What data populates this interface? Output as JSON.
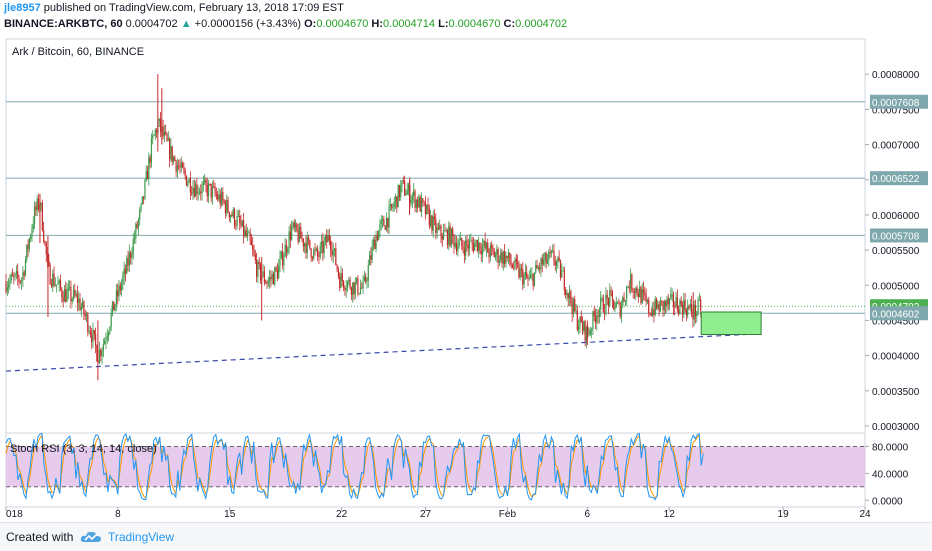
{
  "header": {
    "user": "jle8957",
    "published_text": "published on TradingView.com, February 13, 2018 17:09 EST",
    "symbol_text": "BINANCE:ARKBTC, 60",
    "last": "0.0004702",
    "change_arrow": "▲",
    "change": "+0.0000156 (+3.43%)",
    "o_label": "O:",
    "o_value": "0.0004670",
    "h_label": "H:",
    "h_value": "0.0004714",
    "l_label": "L:",
    "l_value": "0.0004670",
    "c_label": "C:",
    "c_value": "0.0004702"
  },
  "footer": {
    "created_with": "Created with",
    "brand": "TradingView"
  },
  "colors": {
    "up": "#26a69a",
    "down": "#ef5350",
    "candle_up": "#3c9a4a",
    "candle_down": "#c62828",
    "hline": "#7fa8ad",
    "trend": "#3949ab",
    "rsi_band": "#e1bee7",
    "rsi_k": "#2196f3",
    "rsi_d": "#ff9800",
    "box_fill": "#90ee90"
  },
  "chart_data": {
    "type": "candlestick",
    "title": "Ark / Bitcoin, 60, BINANCE",
    "price_axis": {
      "range": [
        0.00029,
        0.00085
      ],
      "ticks": [
        "0.0008000",
        "0.0007500",
        "0.0007000",
        "0.0006500",
        "0.0006000",
        "0.0005500",
        "0.0005000",
        "0.0004500",
        "0.0004000",
        "0.0003500",
        "0.0003000"
      ]
    },
    "time_axis": {
      "range_days": [
        0,
        43
      ],
      "ticks": [
        {
          "label": "018",
          "day": 0
        },
        {
          "label": "8",
          "day": 5.6
        },
        {
          "label": "15",
          "day": 11.2
        },
        {
          "label": "22",
          "day": 16.8
        },
        {
          "label": "27",
          "day": 21.0
        },
        {
          "label": "Feb",
          "day": 25.1
        },
        {
          "label": "6",
          "day": 29.1
        },
        {
          "label": "12",
          "day": 33.2
        },
        {
          "label": "19",
          "day": 38.9
        },
        {
          "label": "24",
          "day": 43.0
        }
      ]
    },
    "horizontal_levels": [
      {
        "label": "0.0007608",
        "value": 0.0007608,
        "style": "solid"
      },
      {
        "label": "0.0006522",
        "value": 0.0006522,
        "style": "solid"
      },
      {
        "label": "0.0005708",
        "value": 0.0005708,
        "style": "solid"
      },
      {
        "label": "0.0004702",
        "value": 0.0004702,
        "style": "dotted",
        "kind": "last-price"
      },
      {
        "label": "0.0004602",
        "value": 0.0004602,
        "style": "solid"
      }
    ],
    "trendline": {
      "from": {
        "day": 0,
        "price": 0.000378
      },
      "to": {
        "day": 37.0,
        "price": 0.00043
      }
    },
    "target_box": {
      "from_day": 34.8,
      "to_day": 37.8,
      "price_high": 0.000462,
      "price_low": 0.00043
    },
    "price_path": [
      [
        0,
        0.000505
      ],
      [
        0.8,
        0.00051
      ],
      [
        1.4,
        0.0006
      ],
      [
        1.7,
        0.00062
      ],
      [
        2.1,
        0.00052
      ],
      [
        2.8,
        0.00049
      ],
      [
        3.6,
        0.00048
      ],
      [
        4.2,
        0.00044
      ],
      [
        4.6,
        0.0004
      ],
      [
        4.9,
        0.00042
      ],
      [
        5.4,
        0.00047
      ],
      [
        6.0,
        0.00052
      ],
      [
        6.8,
        0.00061
      ],
      [
        7.3,
        0.0007
      ],
      [
        7.6,
        0.00073
      ],
      [
        8.2,
        0.00069
      ],
      [
        8.8,
        0.00066
      ],
      [
        9.4,
        0.00064
      ],
      [
        10.2,
        0.000635
      ],
      [
        10.8,
        0.00062
      ],
      [
        11.6,
        0.00059
      ],
      [
        12.2,
        0.00056
      ],
      [
        12.6,
        0.00052
      ],
      [
        13.1,
        0.000505
      ],
      [
        13.6,
        0.00052
      ],
      [
        14.3,
        0.00058
      ],
      [
        15.0,
        0.00056
      ],
      [
        15.6,
        0.00054
      ],
      [
        16.2,
        0.00057
      ],
      [
        16.7,
        0.00051
      ],
      [
        17.3,
        0.0005
      ],
      [
        17.9,
        0.000495
      ],
      [
        18.5,
        0.00057
      ],
      [
        19.2,
        0.0006
      ],
      [
        19.8,
        0.00064
      ],
      [
        20.4,
        0.000625
      ],
      [
        21.0,
        0.000605
      ],
      [
        21.6,
        0.000575
      ],
      [
        22.2,
        0.00057
      ],
      [
        22.8,
        0.000555
      ],
      [
        23.6,
        0.00056
      ],
      [
        24.3,
        0.000545
      ],
      [
        25.0,
        0.00054
      ],
      [
        25.6,
        0.00052
      ],
      [
        26.2,
        0.000505
      ],
      [
        26.8,
        0.00053
      ],
      [
        27.4,
        0.00054
      ],
      [
        27.9,
        0.00051
      ],
      [
        28.6,
        0.00045
      ],
      [
        29.1,
        0.00043
      ],
      [
        29.6,
        0.000465
      ],
      [
        30.2,
        0.00048
      ],
      [
        30.7,
        0.000465
      ],
      [
        31.2,
        0.000505
      ],
      [
        31.7,
        0.00049
      ],
      [
        32.2,
        0.000465
      ],
      [
        32.8,
        0.00047
      ],
      [
        33.4,
        0.000475
      ],
      [
        34.0,
        0.00047
      ],
      [
        34.4,
        0.00046
      ],
      [
        34.8,
        0.00047
      ]
    ],
    "spikes": [
      {
        "day": 1.7,
        "high": 0.00063,
        "low": 0.00056
      },
      {
        "day": 2.1,
        "high": 0.00057,
        "low": 0.000455
      },
      {
        "day": 4.6,
        "high": 0.00045,
        "low": 0.000365
      },
      {
        "day": 7.6,
        "high": 0.0008,
        "low": 0.00069
      },
      {
        "day": 7.8,
        "high": 0.00078,
        "low": 0.0007
      },
      {
        "day": 12.8,
        "high": 0.00054,
        "low": 0.00045
      },
      {
        "day": 20.2,
        "high": 0.00065,
        "low": 0.0006
      },
      {
        "day": 29.1,
        "high": 0.00045,
        "low": 0.000415
      },
      {
        "day": 34.4,
        "high": 0.00049,
        "low": 0.000455
      }
    ],
    "indicator": {
      "name": "Stoch RSI (3, 3, 14, 14, close)",
      "range": [
        -10,
        100
      ],
      "ticks": [
        "80.0000",
        "40.0000",
        "0.0000"
      ],
      "band": [
        20,
        80
      ],
      "series": [
        {
          "name": "K"
        },
        {
          "name": "D"
        }
      ]
    }
  }
}
